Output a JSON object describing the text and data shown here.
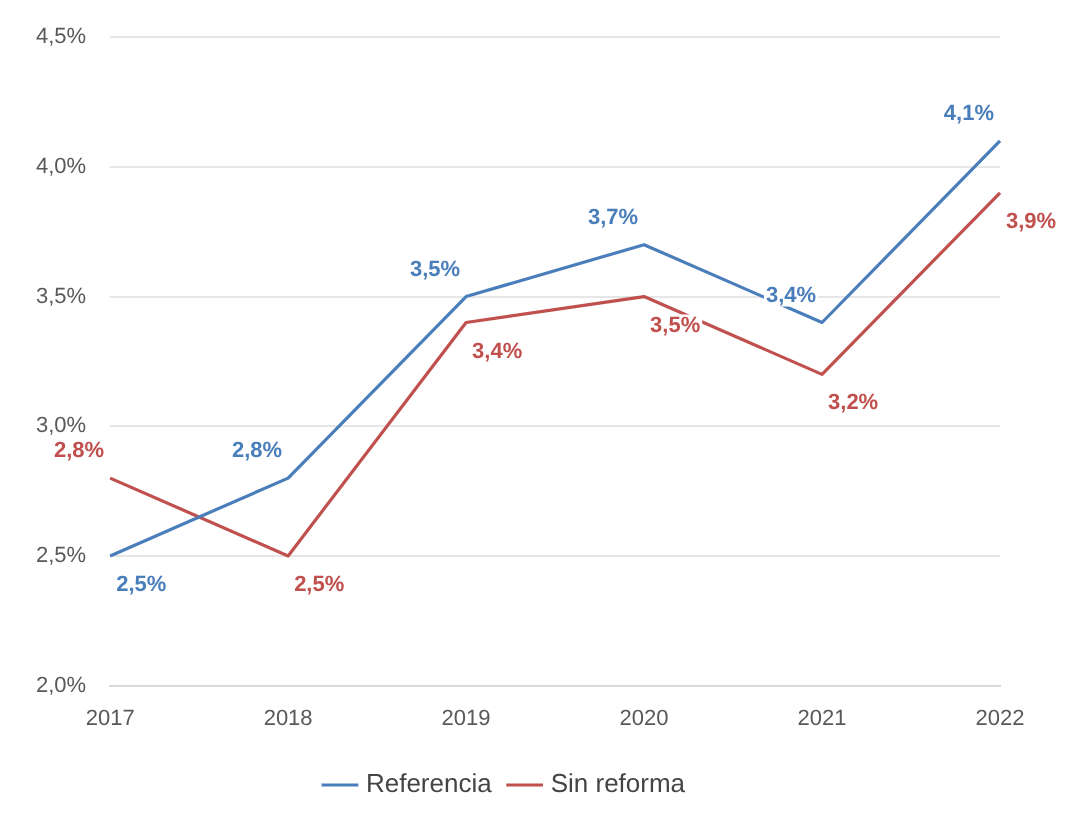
{
  "chart_data": {
    "type": "line",
    "categories": [
      "2017",
      "2018",
      "2019",
      "2020",
      "2021",
      "2022"
    ],
    "series": [
      {
        "name": "Referencia",
        "color": "#4a7ebb",
        "values": [
          2.5,
          2.8,
          3.5,
          3.7,
          3.4,
          4.1
        ],
        "value_labels": [
          "2,5%",
          "2,8%",
          "3,5%",
          "3,7%",
          "3,4%",
          "4,1%"
        ]
      },
      {
        "name": "Sin reforma",
        "color": "#c0504d",
        "values": [
          2.8,
          2.5,
          3.4,
          3.5,
          3.2,
          3.9
        ],
        "value_labels": [
          "2,8%",
          "2,5%",
          "3,4%",
          "3,5%",
          "3,2%",
          "3,9%"
        ]
      }
    ],
    "ylim": [
      2.0,
      4.5
    ],
    "yticks": [
      {
        "value": 2.0,
        "label": "2,0%"
      },
      {
        "value": 2.5,
        "label": "2,5%"
      },
      {
        "value": 3.0,
        "label": "3,0%"
      },
      {
        "value": 3.5,
        "label": "3,5%"
      },
      {
        "value": 4.0,
        "label": "4,0%"
      },
      {
        "value": 4.5,
        "label": "4,5%"
      }
    ],
    "grid": "y",
    "legend": "bottom",
    "marker": "none",
    "line_style": "solid"
  }
}
